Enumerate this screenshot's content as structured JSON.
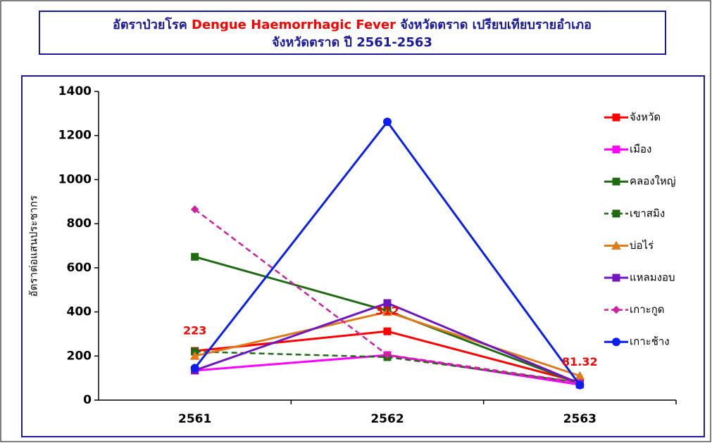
{
  "chart_data": {
    "type": "line",
    "title": [
      [
        {
          "text": "อัตราป่วยโรค ",
          "color": "#1a1aa0"
        },
        {
          "text": "Dengue Haemorrhagic Fever",
          "color": "#ff0000"
        },
        {
          "text": " จังหวัดตราด เปรียบเทียบรายอำเภอ",
          "color": "#1a1aa0"
        }
      ],
      [
        {
          "text": "จังหวัดตราด ปี 2561-2563",
          "color": "#1a1aa0"
        }
      ]
    ],
    "y_label": "อัตราต่อแสนประชากร",
    "categories": [
      "2561",
      "2562",
      "2563"
    ],
    "ylim": [
      0,
      1400
    ],
    "yticks": [
      0,
      200,
      400,
      600,
      800,
      1000,
      1200,
      1400
    ],
    "legend": "right",
    "series": [
      {
        "name": "จังหวัด",
        "color": "#ff0000",
        "marker": "square",
        "dash": false,
        "values": [
          223,
          312,
          81.32
        ],
        "value_labels": [
          "223",
          "312",
          "81.32"
        ]
      },
      {
        "name": "เมือง",
        "color": "#ff00ff",
        "marker": "square",
        "dash": false,
        "values": [
          134,
          204,
          70
        ]
      },
      {
        "name": "คลองใหญ่",
        "color": "#1e6b12",
        "marker": "square",
        "dash": false,
        "values": [
          650,
          405,
          75
        ]
      },
      {
        "name": "เขาสมิง",
        "color": "#1e6b12",
        "marker": "square",
        "dash": true,
        "values": [
          220,
          195,
          80
        ]
      },
      {
        "name": "บ่อไร่",
        "color": "#e07b1a",
        "marker": "triangle",
        "dash": false,
        "values": [
          200,
          400,
          110
        ]
      },
      {
        "name": "แหลมงอบ",
        "color": "#7016c0",
        "marker": "square",
        "dash": false,
        "values": [
          135,
          440,
          75
        ]
      },
      {
        "name": "เกาะกูด",
        "color": "#d020a0",
        "marker": "diamond",
        "dash": true,
        "values": [
          865,
          205,
          80
        ]
      },
      {
        "name": "เกาะช้าง",
        "color": "#0a1ef0",
        "marker": "circle",
        "dash": false,
        "values": [
          145,
          1262,
          68
        ]
      }
    ]
  }
}
